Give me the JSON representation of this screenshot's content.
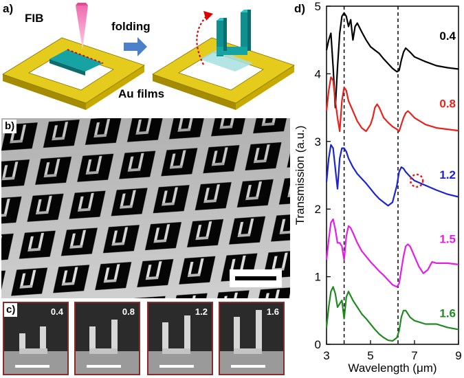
{
  "panel_a": {
    "label": "a)",
    "fib_label": "FIB",
    "folding_label": "folding",
    "films_label": "Au films"
  },
  "panel_b": {
    "label": "b)"
  },
  "panel_c": {
    "label": "c)",
    "insets": [
      "0.4",
      "0.8",
      "1.2",
      "1.6"
    ]
  },
  "panel_d": {
    "label": "d)"
  },
  "chart_data": {
    "type": "line",
    "xlabel": "Wavelength (μm)",
    "ylabel": "Transmission (a.u.)",
    "xlim": [
      3,
      9
    ],
    "ylim": [
      0,
      5
    ],
    "x_ticks": [
      3,
      5,
      7,
      9
    ],
    "y_ticks": [
      0,
      1,
      2,
      3,
      4,
      5
    ],
    "vlines": [
      3.8,
      6.25
    ],
    "grid": false,
    "series": [
      {
        "name": "0.4",
        "color": "#000000",
        "x": [
          3.0,
          3.1,
          3.2,
          3.3,
          3.4,
          3.5,
          3.6,
          3.7,
          3.8,
          3.9,
          4.0,
          4.1,
          4.2,
          4.3,
          4.4,
          4.6,
          4.8,
          5.0,
          5.2,
          5.4,
          5.6,
          5.8,
          6.0,
          6.2,
          6.3,
          6.4,
          6.5,
          6.6,
          6.8,
          7.0,
          7.5,
          8.0,
          8.5,
          9.0
        ],
        "y": [
          4.35,
          4.5,
          4.6,
          4.1,
          3.5,
          4.1,
          4.6,
          4.85,
          4.9,
          4.85,
          4.7,
          4.8,
          4.5,
          4.7,
          4.75,
          4.62,
          4.5,
          4.4,
          4.35,
          4.3,
          4.22,
          4.15,
          4.08,
          4.03,
          4.05,
          4.2,
          4.32,
          4.38,
          4.32,
          4.25,
          4.18,
          4.12,
          4.09,
          4.07
        ]
      },
      {
        "name": "0.8",
        "color": "#e8221b",
        "x": [
          3.0,
          3.1,
          3.2,
          3.3,
          3.4,
          3.5,
          3.6,
          3.7,
          3.8,
          3.9,
          4.0,
          4.2,
          4.4,
          4.6,
          4.8,
          5.0,
          5.1,
          5.2,
          5.3,
          5.4,
          5.6,
          5.8,
          6.0,
          6.2,
          6.3,
          6.4,
          6.5,
          6.6,
          6.7,
          6.8,
          7.0,
          7.5,
          8.0,
          8.5,
          9.0
        ],
        "y": [
          3.45,
          3.75,
          3.95,
          3.9,
          3.6,
          3.35,
          3.15,
          3.6,
          3.8,
          3.75,
          3.6,
          3.45,
          3.3,
          3.2,
          3.15,
          3.25,
          3.35,
          3.5,
          3.55,
          3.5,
          3.35,
          3.28,
          3.22,
          3.18,
          3.15,
          3.25,
          3.35,
          3.42,
          3.45,
          3.42,
          3.35,
          3.25,
          3.2,
          3.18,
          3.16
        ]
      },
      {
        "name": "1.2",
        "color": "#1a23d4",
        "x": [
          3.0,
          3.1,
          3.2,
          3.3,
          3.4,
          3.5,
          3.6,
          3.7,
          3.8,
          3.9,
          4.0,
          4.2,
          4.4,
          4.6,
          4.8,
          5.0,
          5.2,
          5.4,
          5.6,
          5.8,
          6.0,
          6.2,
          6.3,
          6.4,
          6.5,
          6.6,
          6.8,
          7.0,
          7.5,
          8.0,
          8.5,
          9.0
        ],
        "y": [
          2.4,
          2.75,
          2.95,
          2.9,
          2.6,
          2.3,
          2.75,
          2.9,
          2.9,
          2.85,
          2.75,
          2.62,
          2.52,
          2.45,
          2.38,
          2.3,
          2.22,
          2.15,
          2.1,
          2.05,
          2.1,
          2.35,
          2.55,
          2.62,
          2.6,
          2.55,
          2.48,
          2.42,
          2.35,
          2.28,
          2.22,
          2.18
        ]
      },
      {
        "name": "1.5",
        "color": "#e51ce5",
        "x": [
          3.0,
          3.1,
          3.2,
          3.3,
          3.4,
          3.5,
          3.6,
          3.7,
          3.8,
          3.9,
          4.0,
          4.1,
          4.2,
          4.4,
          4.6,
          4.8,
          5.0,
          5.2,
          5.4,
          5.6,
          5.8,
          6.0,
          6.2,
          6.3,
          6.4,
          6.5,
          6.6,
          6.7,
          6.8,
          7.0,
          7.2,
          7.4,
          7.6,
          7.8,
          8.0,
          8.5,
          9.0
        ],
        "y": [
          1.25,
          1.55,
          1.8,
          1.85,
          1.7,
          1.5,
          1.5,
          1.45,
          1.25,
          1.6,
          1.75,
          1.72,
          1.65,
          1.5,
          1.38,
          1.3,
          1.22,
          1.15,
          1.08,
          1.02,
          0.95,
          0.88,
          0.85,
          0.9,
          1.1,
          1.3,
          1.45,
          1.48,
          1.45,
          1.3,
          1.15,
          1.05,
          1.1,
          1.22,
          1.2,
          1.2,
          1.18
        ]
      },
      {
        "name": "1.6",
        "color": "#1f8a1f",
        "x": [
          3.0,
          3.1,
          3.2,
          3.3,
          3.4,
          3.5,
          3.6,
          3.7,
          3.8,
          3.9,
          4.0,
          4.2,
          4.4,
          4.6,
          4.8,
          5.0,
          5.2,
          5.4,
          5.6,
          5.8,
          6.0,
          6.2,
          6.3,
          6.4,
          6.5,
          6.6,
          6.7,
          6.8,
          7.0,
          7.5,
          8.0,
          8.5,
          9.0
        ],
        "y": [
          0.25,
          0.55,
          0.78,
          0.85,
          0.75,
          0.55,
          0.6,
          0.65,
          0.38,
          0.7,
          0.78,
          0.65,
          0.55,
          0.45,
          0.38,
          0.3,
          0.22,
          0.15,
          0.1,
          0.06,
          0.05,
          0.1,
          0.2,
          0.4,
          0.5,
          0.5,
          0.45,
          0.4,
          0.35,
          0.3,
          0.3,
          0.25,
          0.22
        ]
      }
    ]
  }
}
